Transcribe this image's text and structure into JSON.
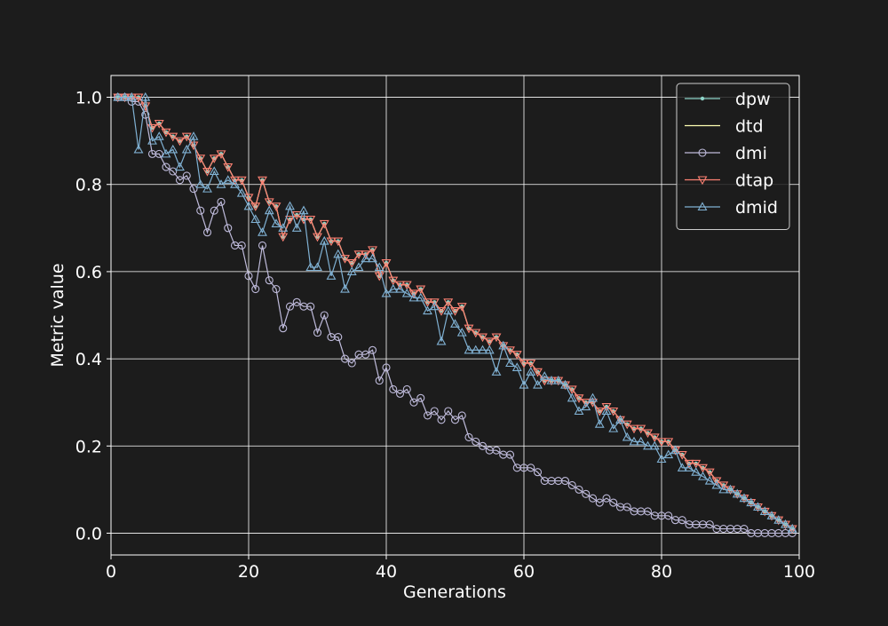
{
  "chart_data": {
    "type": "line",
    "xlabel": "Generations",
    "ylabel": "Metric value",
    "xlim": [
      0,
      100
    ],
    "ylim": [
      -0.05,
      1.05
    ],
    "xticks": [
      0,
      20,
      40,
      60,
      80,
      100
    ],
    "yticks": [
      0.0,
      0.2,
      0.4,
      0.6,
      0.8,
      1.0
    ],
    "xtick_labels": [
      "0",
      "20",
      "40",
      "60",
      "80",
      "100"
    ],
    "ytick_labels": [
      "0.0",
      "0.2",
      "0.4",
      "0.6",
      "0.8",
      "1.0"
    ],
    "grid": true,
    "legend_position": "upper-right",
    "x": [
      1,
      2,
      3,
      4,
      5,
      6,
      7,
      8,
      9,
      10,
      11,
      12,
      13,
      14,
      15,
      16,
      17,
      18,
      19,
      20,
      21,
      22,
      23,
      24,
      25,
      26,
      27,
      28,
      29,
      30,
      31,
      32,
      33,
      34,
      35,
      36,
      37,
      38,
      39,
      40,
      41,
      42,
      43,
      44,
      45,
      46,
      47,
      48,
      49,
      50,
      51,
      52,
      53,
      54,
      55,
      56,
      57,
      58,
      59,
      60,
      61,
      62,
      63,
      64,
      65,
      66,
      67,
      68,
      69,
      70,
      71,
      72,
      73,
      74,
      75,
      76,
      77,
      78,
      79,
      80,
      81,
      82,
      83,
      84,
      85,
      86,
      87,
      88,
      89,
      90,
      91,
      92,
      93,
      94,
      95,
      96,
      97,
      98,
      99
    ],
    "series": [
      {
        "name": "dpw",
        "color": "#8dd3c7",
        "marker": "dot",
        "values": [
          1.0,
          1.0,
          1.0,
          1.0,
          0.98,
          0.93,
          0.94,
          0.92,
          0.91,
          0.9,
          0.91,
          0.89,
          0.86,
          0.83,
          0.86,
          0.87,
          0.84,
          0.81,
          0.81,
          0.77,
          0.75,
          0.81,
          0.76,
          0.75,
          0.68,
          0.72,
          0.73,
          0.72,
          0.72,
          0.68,
          0.71,
          0.67,
          0.67,
          0.63,
          0.62,
          0.64,
          0.64,
          0.65,
          0.59,
          0.62,
          0.58,
          0.57,
          0.57,
          0.55,
          0.56,
          0.53,
          0.53,
          0.51,
          0.53,
          0.51,
          0.52,
          0.47,
          0.46,
          0.45,
          0.44,
          0.45,
          0.43,
          0.42,
          0.41,
          0.39,
          0.39,
          0.37,
          0.35,
          0.35,
          0.35,
          0.34,
          0.33,
          0.31,
          0.3,
          0.3,
          0.28,
          0.29,
          0.28,
          0.26,
          0.25,
          0.24,
          0.24,
          0.23,
          0.22,
          0.21,
          0.21,
          0.19,
          0.18,
          0.16,
          0.16,
          0.15,
          0.14,
          0.12,
          0.11,
          0.1,
          0.09,
          0.08,
          0.07,
          0.06,
          0.05,
          0.04,
          0.03,
          0.02,
          0.01
        ]
      },
      {
        "name": "dtd",
        "color": "#ffffb3",
        "marker": "none",
        "values": [
          1.0,
          1.0,
          1.0,
          1.0,
          0.98,
          0.93,
          0.94,
          0.92,
          0.91,
          0.9,
          0.91,
          0.89,
          0.86,
          0.83,
          0.86,
          0.87,
          0.84,
          0.81,
          0.81,
          0.77,
          0.75,
          0.81,
          0.76,
          0.75,
          0.68,
          0.72,
          0.73,
          0.72,
          0.72,
          0.68,
          0.71,
          0.67,
          0.67,
          0.63,
          0.62,
          0.64,
          0.64,
          0.65,
          0.59,
          0.62,
          0.58,
          0.57,
          0.57,
          0.55,
          0.56,
          0.53,
          0.53,
          0.51,
          0.53,
          0.51,
          0.52,
          0.47,
          0.46,
          0.45,
          0.44,
          0.45,
          0.43,
          0.42,
          0.41,
          0.39,
          0.39,
          0.37,
          0.35,
          0.35,
          0.35,
          0.34,
          0.33,
          0.31,
          0.3,
          0.3,
          0.28,
          0.29,
          0.28,
          0.26,
          0.25,
          0.24,
          0.24,
          0.23,
          0.22,
          0.21,
          0.21,
          0.19,
          0.18,
          0.16,
          0.16,
          0.15,
          0.14,
          0.12,
          0.11,
          0.1,
          0.09,
          0.08,
          0.07,
          0.06,
          0.05,
          0.04,
          0.03,
          0.02,
          0.01
        ]
      },
      {
        "name": "dmi",
        "color": "#bebada",
        "marker": "circle",
        "values": [
          1.0,
          1.0,
          0.99,
          0.99,
          0.96,
          0.87,
          0.87,
          0.84,
          0.83,
          0.81,
          0.82,
          0.79,
          0.74,
          0.69,
          0.74,
          0.76,
          0.7,
          0.66,
          0.66,
          0.59,
          0.56,
          0.66,
          0.58,
          0.56,
          0.47,
          0.52,
          0.53,
          0.52,
          0.52,
          0.46,
          0.5,
          0.45,
          0.45,
          0.4,
          0.39,
          0.41,
          0.41,
          0.42,
          0.35,
          0.38,
          0.33,
          0.32,
          0.33,
          0.3,
          0.31,
          0.27,
          0.28,
          0.26,
          0.28,
          0.26,
          0.27,
          0.22,
          0.21,
          0.2,
          0.19,
          0.19,
          0.18,
          0.18,
          0.15,
          0.15,
          0.15,
          0.14,
          0.12,
          0.12,
          0.12,
          0.12,
          0.11,
          0.1,
          0.09,
          0.08,
          0.07,
          0.08,
          0.07,
          0.06,
          0.06,
          0.05,
          0.05,
          0.05,
          0.04,
          0.04,
          0.04,
          0.03,
          0.03,
          0.02,
          0.02,
          0.02,
          0.02,
          0.01,
          0.01,
          0.01,
          0.01,
          0.01,
          0.0,
          0.0,
          0.0,
          0.0,
          0.0,
          0.0,
          0.0
        ]
      },
      {
        "name": "dtap",
        "color": "#fb8072",
        "marker": "triangle-down",
        "values": [
          1.0,
          1.0,
          1.0,
          1.0,
          0.98,
          0.93,
          0.94,
          0.92,
          0.91,
          0.9,
          0.91,
          0.89,
          0.86,
          0.83,
          0.86,
          0.87,
          0.84,
          0.81,
          0.81,
          0.77,
          0.75,
          0.81,
          0.76,
          0.75,
          0.68,
          0.72,
          0.73,
          0.72,
          0.72,
          0.68,
          0.71,
          0.67,
          0.67,
          0.63,
          0.62,
          0.64,
          0.64,
          0.65,
          0.59,
          0.62,
          0.58,
          0.57,
          0.57,
          0.55,
          0.56,
          0.53,
          0.53,
          0.51,
          0.53,
          0.51,
          0.52,
          0.47,
          0.46,
          0.45,
          0.44,
          0.45,
          0.43,
          0.42,
          0.41,
          0.39,
          0.39,
          0.37,
          0.35,
          0.35,
          0.35,
          0.34,
          0.33,
          0.31,
          0.3,
          0.3,
          0.28,
          0.29,
          0.28,
          0.26,
          0.25,
          0.24,
          0.24,
          0.23,
          0.22,
          0.21,
          0.21,
          0.19,
          0.18,
          0.16,
          0.16,
          0.15,
          0.14,
          0.12,
          0.11,
          0.1,
          0.09,
          0.08,
          0.07,
          0.06,
          0.05,
          0.04,
          0.03,
          0.02,
          0.01
        ]
      },
      {
        "name": "dmid",
        "color": "#80b1d3",
        "marker": "triangle-up",
        "values": [
          1.0,
          1.0,
          1.0,
          0.88,
          1.0,
          0.9,
          0.91,
          0.87,
          0.88,
          0.84,
          0.88,
          0.91,
          0.8,
          0.79,
          0.83,
          0.8,
          0.81,
          0.8,
          0.78,
          0.75,
          0.72,
          0.69,
          0.74,
          0.71,
          0.7,
          0.75,
          0.7,
          0.74,
          0.61,
          0.61,
          0.67,
          0.59,
          0.64,
          0.56,
          0.6,
          0.61,
          0.63,
          0.63,
          0.61,
          0.55,
          0.56,
          0.56,
          0.55,
          0.54,
          0.54,
          0.51,
          0.52,
          0.44,
          0.51,
          0.48,
          0.46,
          0.42,
          0.42,
          0.42,
          0.42,
          0.37,
          0.43,
          0.39,
          0.38,
          0.34,
          0.37,
          0.34,
          0.36,
          0.35,
          0.35,
          0.34,
          0.31,
          0.28,
          0.29,
          0.31,
          0.25,
          0.28,
          0.24,
          0.26,
          0.22,
          0.21,
          0.21,
          0.2,
          0.2,
          0.17,
          0.18,
          0.19,
          0.15,
          0.15,
          0.14,
          0.13,
          0.12,
          0.11,
          0.1,
          0.1,
          0.09,
          0.08,
          0.07,
          0.06,
          0.05,
          0.04,
          0.03,
          0.02,
          0.01
        ]
      }
    ]
  }
}
